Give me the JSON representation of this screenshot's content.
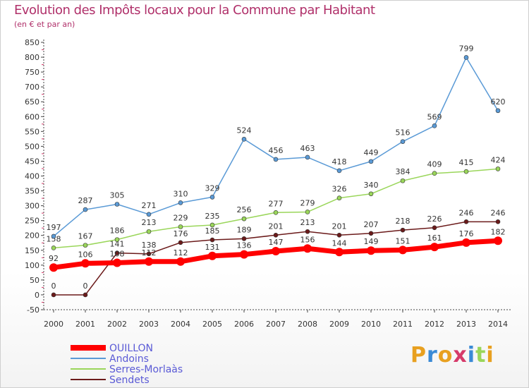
{
  "title": "Evolution des Impôts locaux pour la Commune par Habitant",
  "subtitle": "(en € et par an)",
  "logo": "Proxiti",
  "colors": {
    "OUILLON": "#ff0000",
    "Andoins": "#5a9ad6",
    "Serres-Morlaàs": "#9ad65a",
    "Sendets": "#6b1a1a"
  },
  "chart_data": {
    "type": "line",
    "categories": [
      "2000",
      "2001",
      "2002",
      "2003",
      "2004",
      "2005",
      "2006",
      "2007",
      "2008",
      "2009",
      "2010",
      "2011",
      "2012",
      "2013",
      "2014"
    ],
    "ylim": [
      -50,
      850
    ],
    "yticks": [
      -50,
      0,
      50,
      100,
      150,
      200,
      250,
      300,
      350,
      400,
      450,
      500,
      550,
      600,
      650,
      700,
      750,
      800,
      850
    ],
    "grid": false,
    "legend_position": "bottom-left",
    "series": [
      {
        "name": "OUILLON",
        "values": [
          92,
          106,
          108,
          112,
          112,
          131,
          136,
          147,
          156,
          144,
          149,
          151,
          161,
          176,
          182
        ]
      },
      {
        "name": "Andoins",
        "values": [
          197,
          287,
          305,
          271,
          310,
          329,
          524,
          456,
          463,
          418,
          449,
          516,
          569,
          799,
          620
        ]
      },
      {
        "name": "Serres-Morlaàs",
        "values": [
          158,
          167,
          186,
          213,
          229,
          235,
          256,
          277,
          279,
          326,
          340,
          384,
          409,
          415,
          424
        ]
      },
      {
        "name": "Sendets",
        "values": [
          0,
          0,
          141,
          138,
          176,
          185,
          189,
          201,
          213,
          201,
          207,
          218,
          226,
          246,
          246
        ]
      }
    ]
  }
}
